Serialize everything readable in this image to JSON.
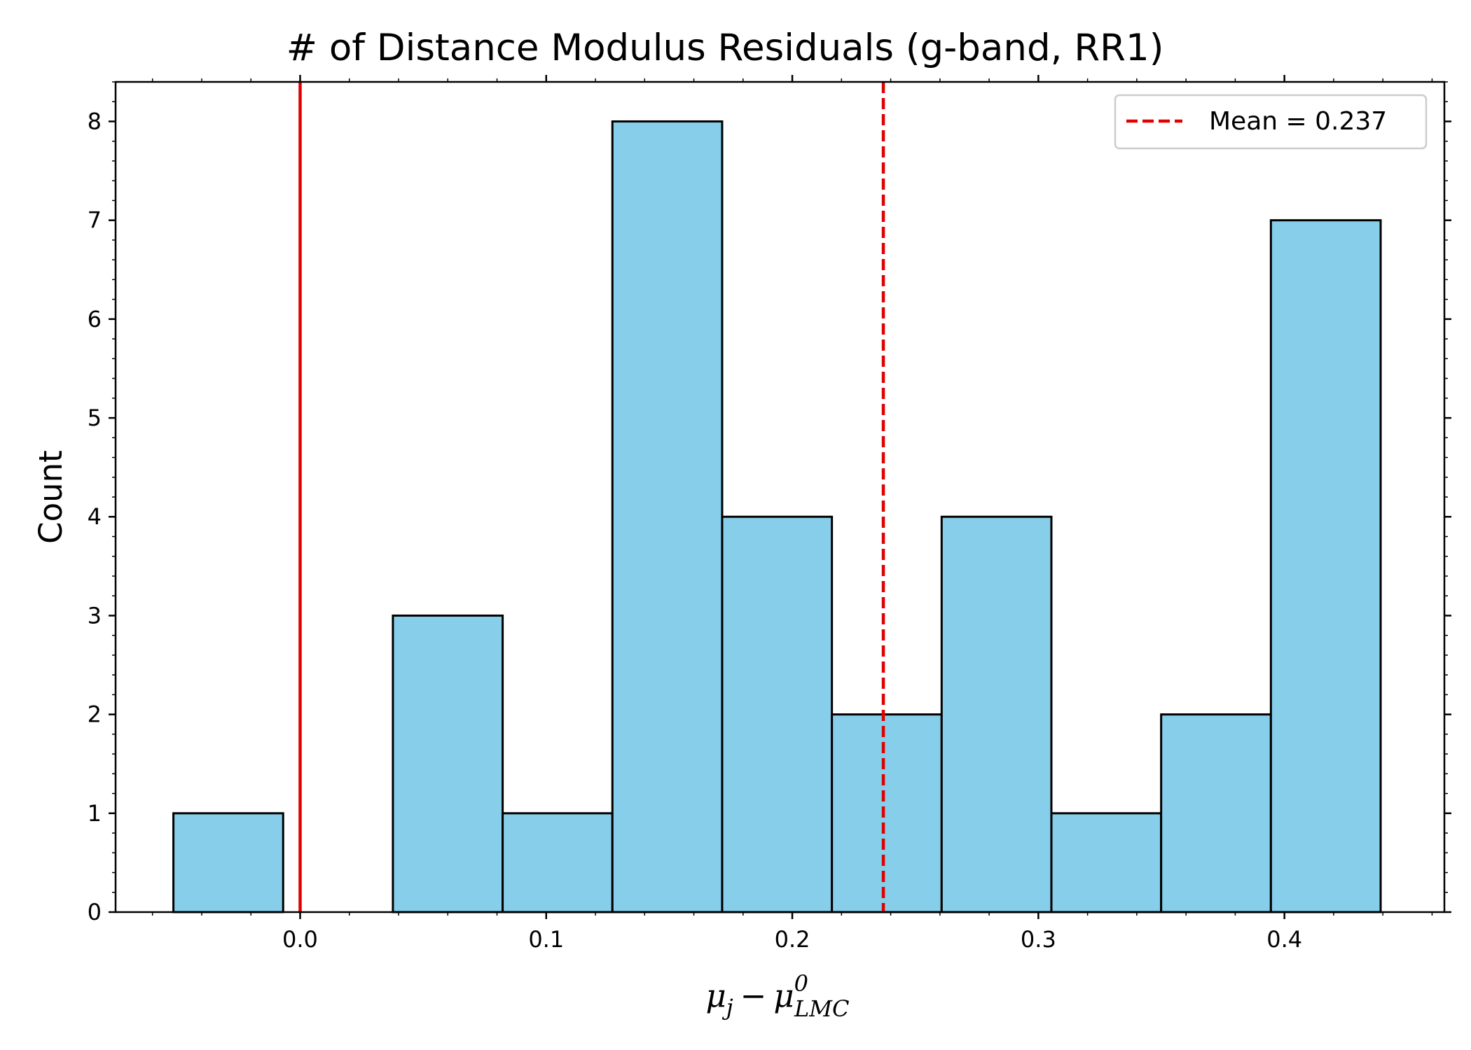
{
  "chart_data": {
    "type": "bar",
    "title": "# of Distance Modulus Residuals (g-band, RR1)",
    "xlabel": {
      "main": "μ",
      "sub1": "j",
      "minus": "−",
      "main2": "μ",
      "sup": "0",
      "sub2": "LMC"
    },
    "ylabel": "Count",
    "xlim": [
      -0.075,
      0.465
    ],
    "ylim": [
      0,
      8.4
    ],
    "xticks": [
      "0.0",
      "0.1",
      "0.2",
      "0.3",
      "0.4"
    ],
    "yticks": [
      "0",
      "1",
      "2",
      "3",
      "4",
      "5",
      "6",
      "7",
      "8"
    ],
    "bin_edges": [
      -0.0515,
      -0.0069,
      0.0377,
      0.0823,
      0.1269,
      0.1715,
      0.2161,
      0.2607,
      0.3053,
      0.3499,
      0.3945,
      0.4391
    ],
    "counts": [
      1,
      0,
      3,
      1,
      8,
      4,
      2,
      4,
      1,
      2,
      7
    ],
    "bar_color": "#87ceeb",
    "edge_color": "#000000",
    "reference_line": {
      "x": 0.0,
      "color": "#e00000",
      "style": "solid"
    },
    "mean_line": {
      "x": 0.237,
      "color": "#e00000",
      "style": "dashed"
    },
    "legend": {
      "label": "Mean = 0.237",
      "location": "top-right"
    },
    "grid": false
  }
}
